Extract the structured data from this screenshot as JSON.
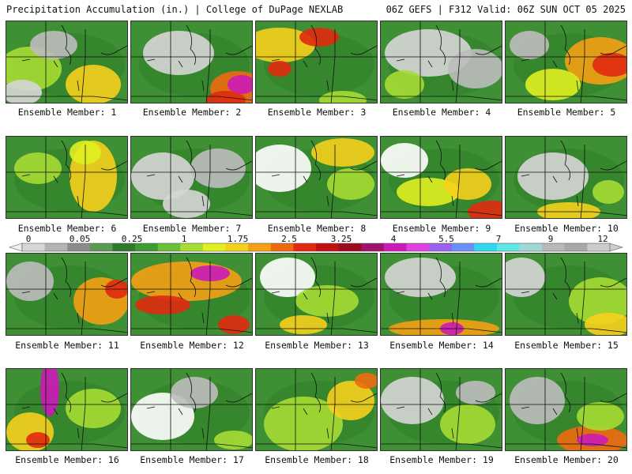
{
  "header": {
    "title_left": "Precipitation Accumulation (in.) | College of DuPage NEXLAB",
    "title_right": "06Z GEFS | F312 Valid: 06Z SUN OCT 05 2025"
  },
  "colorbar": {
    "ticks": [
      "0",
      "0.05",
      "0.25",
      "1",
      "1.75",
      "2.5",
      "3.25",
      "4",
      "5.5",
      "7",
      "9",
      "12"
    ],
    "colors": [
      "#d6d6d6",
      "#b4b4b4",
      "#8c8c8c",
      "#5a9a50",
      "#2c7a2a",
      "#3e9a32",
      "#6cc034",
      "#a6dc34",
      "#e0f020",
      "#f6d01c",
      "#f4a014",
      "#ee6a10",
      "#e02a10",
      "#c01010",
      "#9c0a20",
      "#a0106e",
      "#cc1ab8",
      "#e040e0",
      "#9a60f0",
      "#6a90f8",
      "#30d8f0",
      "#60e8e8",
      "#a0d8d8",
      "#b8b8b8",
      "#a8a8a8",
      "#cccccc"
    ]
  },
  "panels": [
    {
      "label": "Ensemble Member: 1"
    },
    {
      "label": "Ensemble Member: 2"
    },
    {
      "label": "Ensemble Member: 3"
    },
    {
      "label": "Ensemble Member: 4"
    },
    {
      "label": "Ensemble Member: 5"
    },
    {
      "label": "Ensemble Member: 6"
    },
    {
      "label": "Ensemble Member: 7"
    },
    {
      "label": "Ensemble Member: 8"
    },
    {
      "label": "Ensemble Member: 9"
    },
    {
      "label": "Ensemble Member: 10"
    },
    {
      "label": "Ensemble Member: 11"
    },
    {
      "label": "Ensemble Member: 12"
    },
    {
      "label": "Ensemble Member: 13"
    },
    {
      "label": "Ensemble Member: 14"
    },
    {
      "label": "Ensemble Member: 15"
    },
    {
      "label": "Ensemble Member: 16"
    },
    {
      "label": "Ensemble Member: 17"
    },
    {
      "label": "Ensemble Member: 18"
    },
    {
      "label": "Ensemble Member: 19"
    },
    {
      "label": "Ensemble Member: 20"
    }
  ]
}
